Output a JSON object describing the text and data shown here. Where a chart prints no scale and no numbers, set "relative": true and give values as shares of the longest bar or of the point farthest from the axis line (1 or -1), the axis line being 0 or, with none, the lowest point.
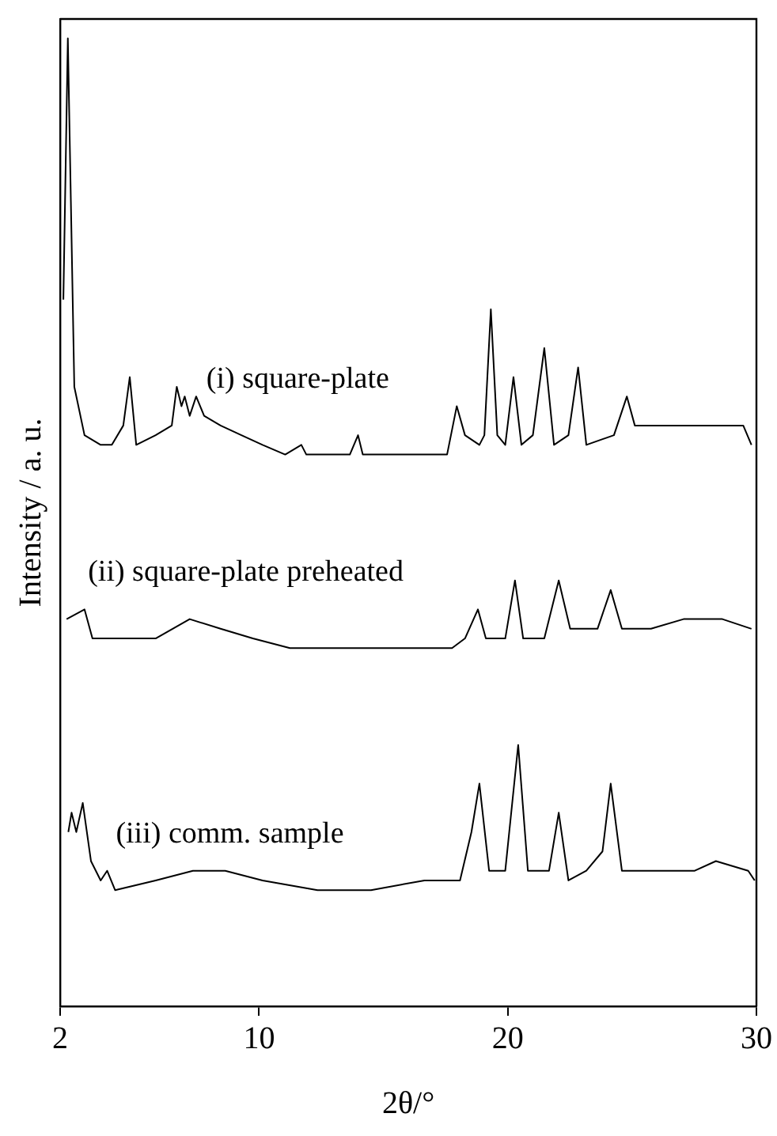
{
  "chart_data": {
    "type": "line",
    "relative": true,
    "xlabel": "2θ/°",
    "ylabel": "Intensity / a. u.",
    "xlim": [
      2,
      30
    ],
    "xticks": [
      2,
      10,
      20,
      30
    ],
    "grid": false,
    "legend": false,
    "marker": "none",
    "line_style": "solid",
    "series": [
      {
        "name": "(i) square-plate",
        "color": "#000000",
        "x": [
          2.13,
          2.31,
          2.57,
          2.98,
          3.63,
          4.08,
          4.54,
          4.8,
          5.06,
          5.84,
          6.49,
          6.69,
          6.88,
          7.01,
          7.21,
          7.47,
          7.79,
          8.45,
          9.29,
          10.14,
          11.05,
          11.7,
          11.9,
          12.74,
          13.65,
          13.98,
          14.17,
          15.61,
          16.65,
          17.56,
          17.95,
          18.28,
          18.86,
          19.06,
          19.32,
          19.58,
          19.9,
          20.23,
          20.55,
          21.01,
          21.47,
          21.86,
          22.44,
          22.83,
          23.16,
          24.27,
          24.79,
          25.11,
          25.44,
          26.41,
          27.65,
          28.63,
          29.47,
          29.8
        ],
        "values": [
          0.73,
          1,
          0.64,
          0.59,
          0.58,
          0.58,
          0.6,
          0.65,
          0.58,
          0.59,
          0.6,
          0.64,
          0.62,
          0.63,
          0.61,
          0.63,
          0.61,
          0.6,
          0.59,
          0.58,
          0.57,
          0.58,
          0.57,
          0.57,
          0.57,
          0.59,
          0.57,
          0.57,
          0.57,
          0.57,
          0.62,
          0.59,
          0.58,
          0.59,
          0.72,
          0.59,
          0.58,
          0.65,
          0.58,
          0.59,
          0.68,
          0.58,
          0.59,
          0.66,
          0.58,
          0.59,
          0.63,
          0.6,
          0.6,
          0.6,
          0.6,
          0.6,
          0.6,
          0.58
        ]
      },
      {
        "name": "(ii) square-plate preheated",
        "color": "#000000",
        "x": [
          2.26,
          2.98,
          3.3,
          4.73,
          5.84,
          7.21,
          8.45,
          9.75,
          11.24,
          13.0,
          14.96,
          16.65,
          17.76,
          18.28,
          18.8,
          19.12,
          19.9,
          20.29,
          20.62,
          21.47,
          22.05,
          22.51,
          23.16,
          23.61,
          24.14,
          24.59,
          25.76,
          27.07,
          28.63,
          29.8
        ],
        "values": [
          0.4,
          0.41,
          0.38,
          0.38,
          0.38,
          0.4,
          0.39,
          0.38,
          0.37,
          0.37,
          0.37,
          0.37,
          0.37,
          0.38,
          0.41,
          0.38,
          0.38,
          0.44,
          0.38,
          0.38,
          0.44,
          0.39,
          0.39,
          0.39,
          0.43,
          0.39,
          0.39,
          0.4,
          0.4,
          0.39
        ]
      },
      {
        "name": "(iii) comm. sample",
        "color": "#000000",
        "x": [
          2.33,
          2.46,
          2.65,
          2.91,
          3.24,
          3.63,
          3.89,
          4.21,
          5.84,
          7.34,
          8.64,
          10.14,
          12.35,
          14.5,
          16.65,
          18.08,
          18.54,
          18.86,
          19.25,
          19.9,
          20.42,
          20.81,
          21.66,
          22.05,
          22.44,
          23.16,
          23.81,
          24.14,
          24.59,
          26.41,
          27.52,
          28.37,
          29.67,
          29.93
        ],
        "values": [
          0.18,
          0.2,
          0.18,
          0.21,
          0.15,
          0.13,
          0.14,
          0.12,
          0.13,
          0.14,
          0.14,
          0.13,
          0.12,
          0.12,
          0.13,
          0.13,
          0.18,
          0.23,
          0.14,
          0.14,
          0.27,
          0.14,
          0.14,
          0.2,
          0.13,
          0.14,
          0.16,
          0.23,
          0.14,
          0.14,
          0.14,
          0.15,
          0.14,
          0.13
        ]
      }
    ]
  }
}
